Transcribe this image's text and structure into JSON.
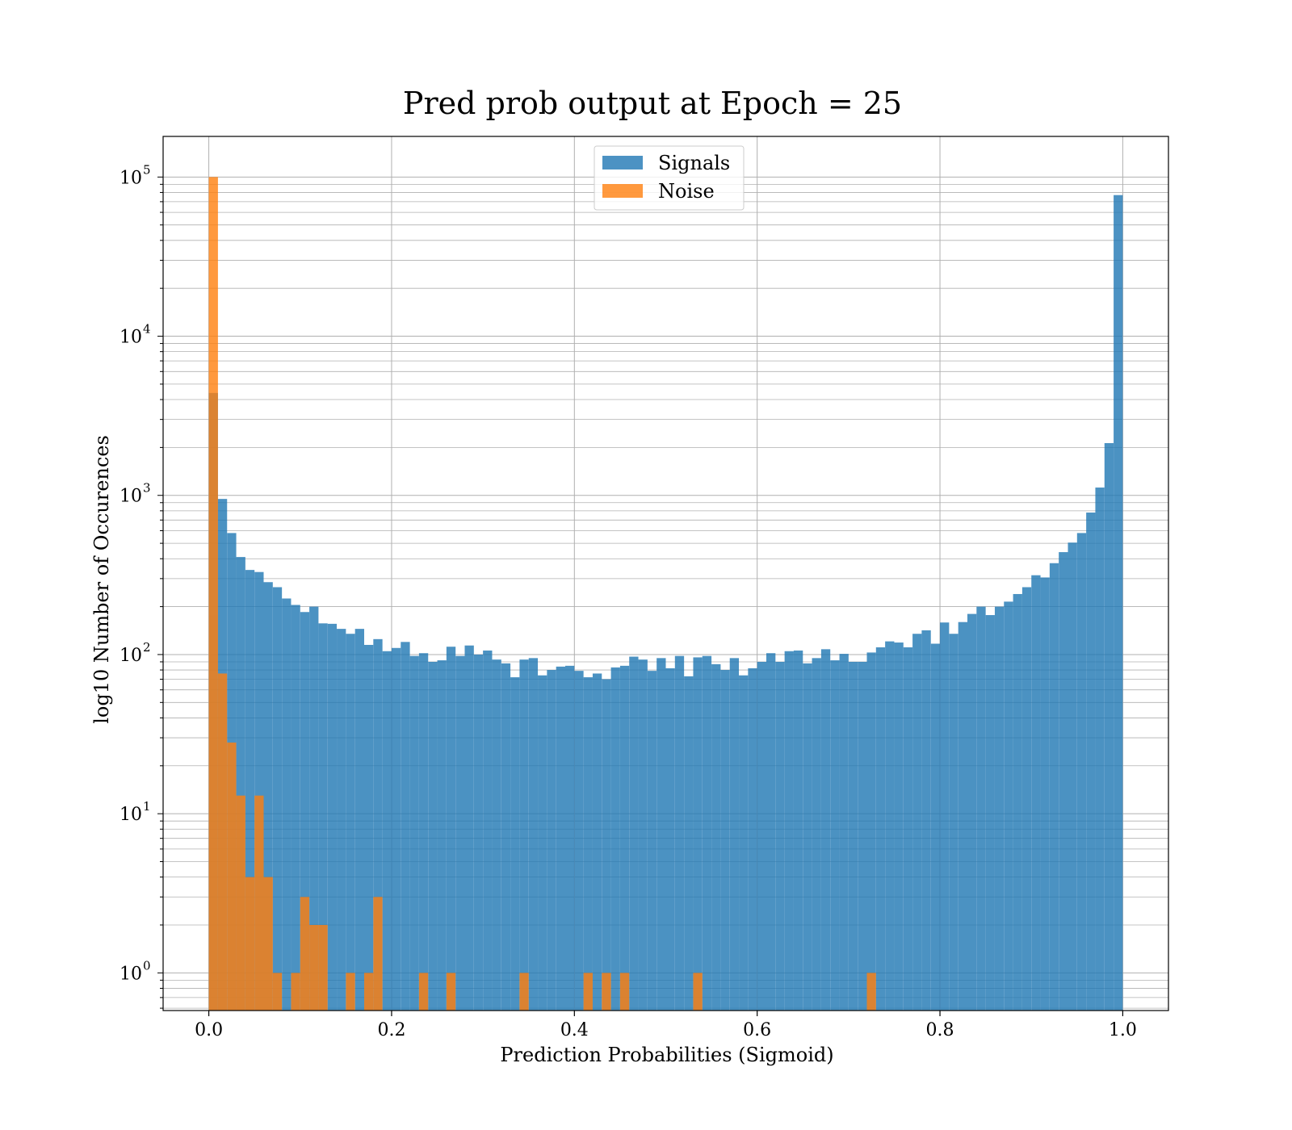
{
  "chart_data": {
    "type": "bar",
    "histogram": true,
    "title": "Pred prob output at Epoch = 25",
    "xlabel": "Prediction Probabilities (Sigmoid)",
    "ylabel": "log10 Number of Occurences",
    "xlim": [
      -0.05,
      1.05
    ],
    "ylim": [
      0.58,
      180000
    ],
    "yscale": "log",
    "grid": true,
    "legend_position": "top-center",
    "bin_width": 0.01,
    "x_ticks": [
      "0.0",
      "0.2",
      "0.4",
      "0.6",
      "0.8",
      "1.0"
    ],
    "x_tick_values": [
      0.0,
      0.2,
      0.4,
      0.6,
      0.8,
      1.0
    ],
    "y_ticks": [
      {
        "value": 1,
        "base": "10",
        "exp": "0"
      },
      {
        "value": 10,
        "base": "10",
        "exp": "1"
      },
      {
        "value": 100,
        "base": "10",
        "exp": "2"
      },
      {
        "value": 1000,
        "base": "10",
        "exp": "3"
      },
      {
        "value": 10000,
        "base": "10",
        "exp": "4"
      },
      {
        "value": 100000,
        "base": "10",
        "exp": "5"
      }
    ],
    "series": [
      {
        "name": "Signals",
        "color": "#1f77b4",
        "values": [
          4400,
          950,
          580,
          410,
          340,
          330,
          285,
          265,
          225,
          205,
          185,
          200,
          157,
          156,
          145,
          135,
          145,
          115,
          125,
          105,
          110,
          120,
          98,
          102,
          90,
          92,
          112,
          98,
          114,
          100,
          106,
          93,
          88,
          72,
          93,
          95,
          74,
          80,
          84,
          85,
          79,
          72,
          76,
          70,
          83,
          85,
          97,
          93,
          79,
          95,
          82,
          98,
          73,
          96,
          98,
          87,
          80,
          95,
          74,
          82,
          90,
          102,
          90,
          105,
          106,
          88,
          95,
          108,
          92,
          101,
          90,
          90,
          103,
          111,
          121,
          119,
          111,
          135,
          142,
          117,
          159,
          135,
          160,
          180,
          200,
          177,
          200,
          215,
          240,
          265,
          315,
          305,
          375,
          440,
          505,
          580,
          780,
          1120,
          2130,
          77000
        ]
      },
      {
        "name": "Noise",
        "color": "#ff7f0e",
        "values": [
          100000,
          76,
          28,
          13,
          4,
          13,
          4,
          1,
          0,
          1,
          3,
          2,
          2,
          0,
          0,
          1,
          0,
          1,
          3,
          0,
          0,
          0,
          0,
          1,
          0,
          0,
          1,
          0,
          0,
          0,
          0,
          0,
          0,
          0,
          1,
          0,
          0,
          0,
          0,
          0,
          0,
          1,
          0,
          1,
          0,
          1,
          0,
          0,
          0,
          0,
          0,
          0,
          0,
          1,
          0,
          0,
          0,
          0,
          0,
          0,
          0,
          0,
          0,
          0,
          0,
          0,
          0,
          0,
          0,
          0,
          0,
          0,
          1,
          0,
          0,
          0,
          0,
          0,
          0,
          0,
          0,
          0,
          0,
          0,
          0,
          0,
          0,
          0,
          0,
          0,
          0,
          0,
          0,
          0,
          0,
          0,
          0,
          0,
          0,
          0
        ]
      }
    ]
  }
}
